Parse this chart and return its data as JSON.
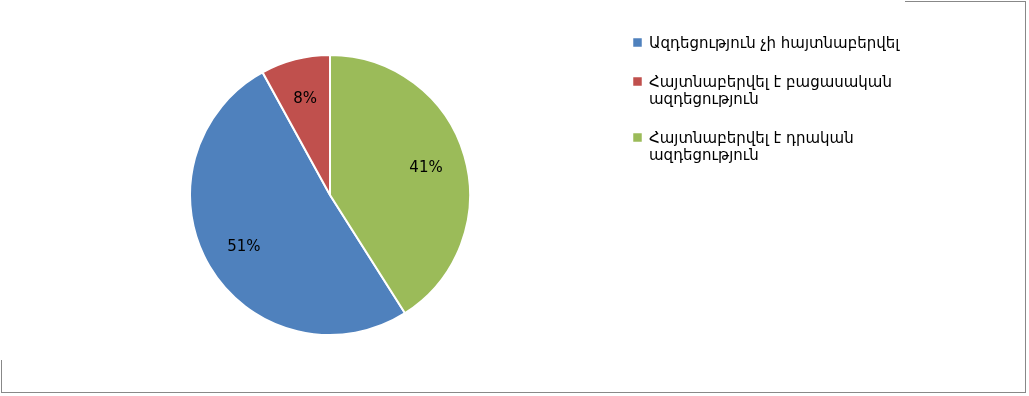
{
  "chart_data": {
    "type": "pie",
    "categories": [
      "Ազդեցություն չի հայտնաբերվել",
      "Հայտնաբերվել է բացասական ազդեցություն",
      "Հայտնաբերվել է դրական ազդեցություն"
    ],
    "values": [
      51,
      8,
      41
    ],
    "value_labels": [
      "51%",
      "8%",
      "41%"
    ],
    "colors": [
      "#4f81bd",
      "#c0504d",
      "#9bbb59"
    ],
    "legend": "right"
  }
}
